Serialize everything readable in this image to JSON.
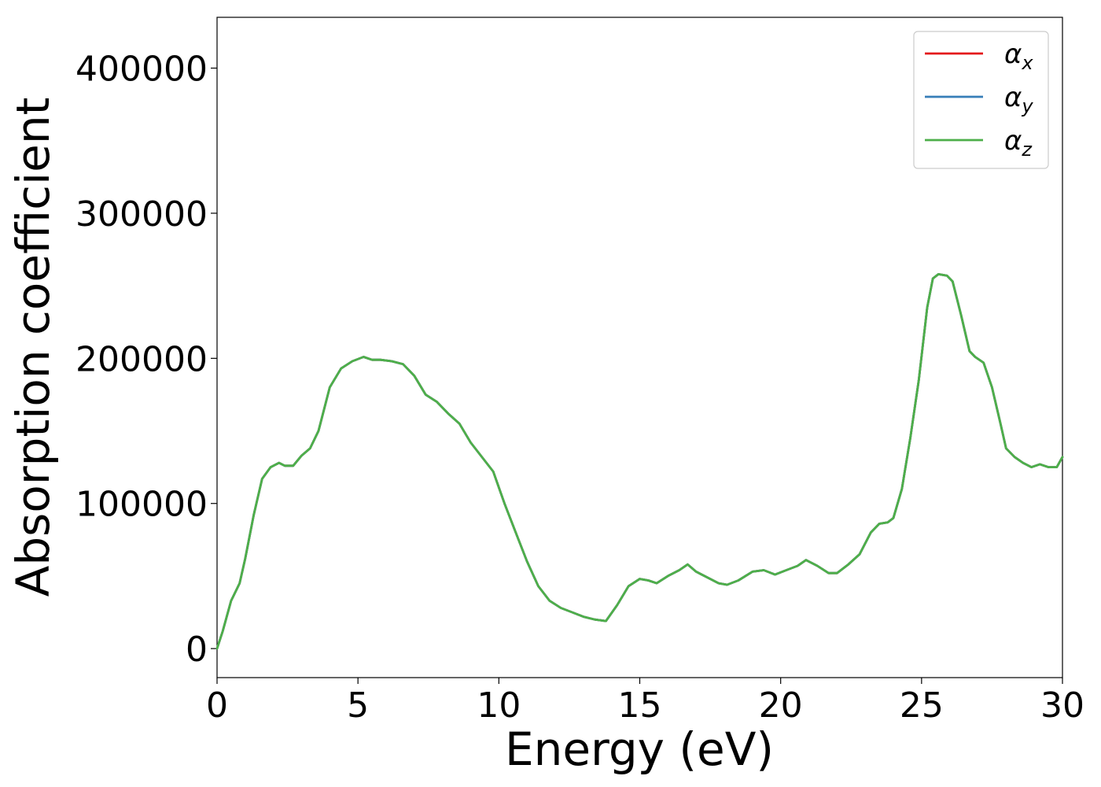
{
  "chart_data": {
    "type": "line",
    "title": "",
    "xlabel": "Energy (eV)",
    "ylabel": "Absorption coefficient",
    "xlim": [
      0,
      30
    ],
    "ylim": [
      -20000,
      435000
    ],
    "x_ticks": [
      "0",
      "5",
      "10",
      "15",
      "20",
      "25",
      "30"
    ],
    "y_ticks": [
      "0",
      "100000",
      "200000",
      "300000",
      "400000"
    ],
    "grid": false,
    "legend_position": "top-right",
    "legend": [
      {
        "symbol": "α",
        "sub": "x",
        "color": "#e41a1c"
      },
      {
        "symbol": "α",
        "sub": "y",
        "color": "#377eb8"
      },
      {
        "symbol": "α",
        "sub": "z",
        "color": "#4daf4a"
      }
    ],
    "x": [
      0,
      0.2,
      0.5,
      0.8,
      1.0,
      1.3,
      1.6,
      1.9,
      2.2,
      2.4,
      2.7,
      3.0,
      3.3,
      3.6,
      4.0,
      4.4,
      4.8,
      5.2,
      5.5,
      5.8,
      6.2,
      6.6,
      7.0,
      7.4,
      7.8,
      8.2,
      8.6,
      9.0,
      9.4,
      9.8,
      10.2,
      10.6,
      11.0,
      11.4,
      11.8,
      12.2,
      12.6,
      13.0,
      13.4,
      13.8,
      14.2,
      14.6,
      15.0,
      15.3,
      15.6,
      16.0,
      16.4,
      16.7,
      17.0,
      17.4,
      17.8,
      18.1,
      18.5,
      19.0,
      19.4,
      19.8,
      20.2,
      20.6,
      20.9,
      21.3,
      21.7,
      22.0,
      22.4,
      22.8,
      23.2,
      23.5,
      23.8,
      24.0,
      24.3,
      24.6,
      24.9,
      25.2,
      25.4,
      25.6,
      25.9,
      26.1,
      26.4,
      26.7,
      26.9,
      27.2,
      27.5,
      27.8,
      28.0,
      28.3,
      28.6,
      28.9,
      29.2,
      29.5,
      29.8,
      30.0
    ],
    "series": [
      {
        "name": "α_x",
        "color": "#e41a1c",
        "values": [
          0,
          12000,
          33000,
          45000,
          62000,
          92000,
          117000,
          125000,
          128000,
          126000,
          126000,
          133000,
          138000,
          150000,
          180000,
          193000,
          198000,
          201000,
          199000,
          199000,
          198000,
          196000,
          188000,
          175000,
          170000,
          162000,
          155000,
          142000,
          132000,
          122000,
          100000,
          80000,
          60000,
          43000,
          33000,
          28000,
          25000,
          22000,
          20000,
          19000,
          30000,
          43000,
          48000,
          47000,
          45000,
          50000,
          54000,
          58000,
          53000,
          49000,
          45000,
          44000,
          47000,
          53000,
          54000,
          51000,
          54000,
          57000,
          61000,
          57000,
          52000,
          52000,
          58000,
          65000,
          80000,
          86000,
          87000,
          90000,
          110000,
          145000,
          185000,
          235000,
          255000,
          258000,
          257000,
          253000,
          230000,
          205000,
          201000,
          197000,
          180000,
          155000,
          138000,
          132000,
          128000,
          125000,
          127000,
          125000,
          125000,
          132000
        ]
      },
      {
        "name": "α_y",
        "color": "#377eb8",
        "values": [
          0,
          12000,
          33000,
          45000,
          62000,
          92000,
          117000,
          125000,
          128000,
          126000,
          126000,
          133000,
          138000,
          150000,
          180000,
          193000,
          198000,
          201000,
          199000,
          199000,
          198000,
          196000,
          188000,
          175000,
          170000,
          162000,
          155000,
          142000,
          132000,
          122000,
          100000,
          80000,
          60000,
          43000,
          33000,
          28000,
          25000,
          22000,
          20000,
          19000,
          30000,
          43000,
          48000,
          47000,
          45000,
          50000,
          54000,
          58000,
          53000,
          49000,
          45000,
          44000,
          47000,
          53000,
          54000,
          51000,
          54000,
          57000,
          61000,
          57000,
          52000,
          52000,
          58000,
          65000,
          80000,
          86000,
          87000,
          90000,
          110000,
          145000,
          185000,
          235000,
          255000,
          258000,
          257000,
          253000,
          230000,
          205000,
          201000,
          197000,
          180000,
          155000,
          138000,
          132000,
          128000,
          125000,
          127000,
          125000,
          125000,
          132000
        ]
      },
      {
        "name": "α_z",
        "color": "#4daf4a",
        "values": [
          0,
          12000,
          33000,
          45000,
          62000,
          92000,
          117000,
          125000,
          128000,
          126000,
          126000,
          133000,
          138000,
          150000,
          180000,
          193000,
          198000,
          201000,
          199000,
          199000,
          198000,
          196000,
          188000,
          175000,
          170000,
          162000,
          155000,
          142000,
          132000,
          122000,
          100000,
          80000,
          60000,
          43000,
          33000,
          28000,
          25000,
          22000,
          20000,
          19000,
          30000,
          43000,
          48000,
          47000,
          45000,
          50000,
          54000,
          58000,
          53000,
          49000,
          45000,
          44000,
          47000,
          53000,
          54000,
          51000,
          54000,
          57000,
          61000,
          57000,
          52000,
          52000,
          58000,
          65000,
          80000,
          86000,
          87000,
          90000,
          110000,
          145000,
          185000,
          235000,
          255000,
          258000,
          257000,
          253000,
          230000,
          205000,
          201000,
          197000,
          180000,
          155000,
          138000,
          132000,
          128000,
          125000,
          127000,
          125000,
          125000,
          132000
        ]
      }
    ]
  }
}
